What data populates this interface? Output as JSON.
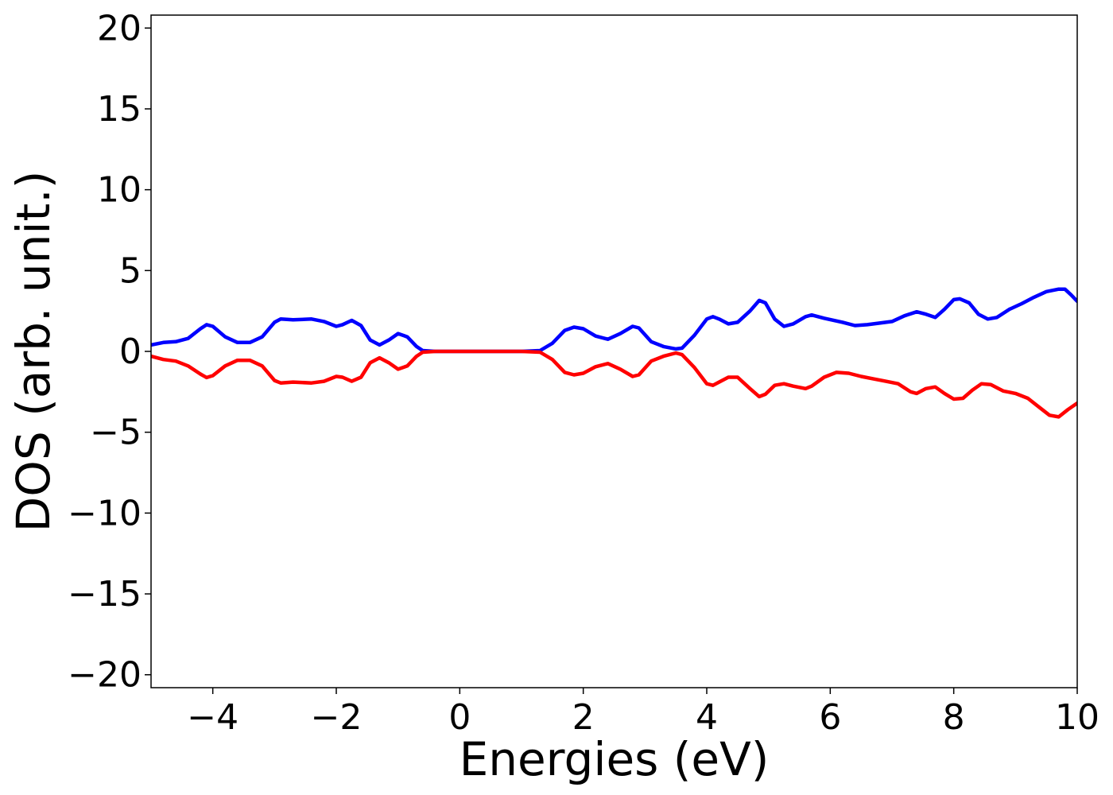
{
  "chart_data": {
    "type": "line",
    "title": "",
    "xlabel": "Energies (eV)",
    "ylabel": "DOS (arb. unit.)",
    "xlim": [
      -5,
      10
    ],
    "ylim": [
      -20.8,
      20.8
    ],
    "x_ticks": [
      -4,
      -2,
      0,
      2,
      4,
      6,
      8,
      10
    ],
    "x_tick_labels": [
      "−4",
      "−2",
      "0",
      "2",
      "4",
      "6",
      "8",
      "10"
    ],
    "y_ticks": [
      20,
      15,
      10,
      5,
      0,
      -5,
      -10,
      -15,
      -20
    ],
    "y_tick_labels": [
      "20",
      "15",
      "10",
      "5",
      "0",
      "−5",
      "−10",
      "−15",
      "−20"
    ],
    "grid": false,
    "legend": "none",
    "series": [
      {
        "color": "#0000ff",
        "points": [
          [
            -5,
            0.4
          ],
          [
            -4.8,
            0.55
          ],
          [
            -4.6,
            0.6
          ],
          [
            -4.4,
            0.8
          ],
          [
            -4.2,
            1.4
          ],
          [
            -4.1,
            1.65
          ],
          [
            -4.0,
            1.55
          ],
          [
            -3.8,
            0.9
          ],
          [
            -3.6,
            0.55
          ],
          [
            -3.4,
            0.55
          ],
          [
            -3.2,
            0.9
          ],
          [
            -3.0,
            1.8
          ],
          [
            -2.9,
            2.0
          ],
          [
            -2.7,
            1.95
          ],
          [
            -2.4,
            2.0
          ],
          [
            -2.2,
            1.85
          ],
          [
            -2.0,
            1.55
          ],
          [
            -1.9,
            1.65
          ],
          [
            -1.75,
            1.92
          ],
          [
            -1.6,
            1.6
          ],
          [
            -1.45,
            0.7
          ],
          [
            -1.3,
            0.4
          ],
          [
            -1.15,
            0.7
          ],
          [
            -1.0,
            1.1
          ],
          [
            -0.85,
            0.9
          ],
          [
            -0.7,
            0.3
          ],
          [
            -0.6,
            0.05
          ],
          [
            -0.4,
            0.0
          ],
          [
            0,
            0.0
          ],
          [
            1.0,
            0.0
          ],
          [
            1.3,
            0.05
          ],
          [
            1.5,
            0.5
          ],
          [
            1.7,
            1.3
          ],
          [
            1.85,
            1.5
          ],
          [
            2.0,
            1.4
          ],
          [
            2.2,
            0.95
          ],
          [
            2.4,
            0.75
          ],
          [
            2.6,
            1.1
          ],
          [
            2.8,
            1.55
          ],
          [
            2.9,
            1.45
          ],
          [
            3.1,
            0.6
          ],
          [
            3.3,
            0.3
          ],
          [
            3.5,
            0.15
          ],
          [
            3.6,
            0.2
          ],
          [
            3.8,
            1.0
          ],
          [
            4.0,
            2.0
          ],
          [
            4.1,
            2.15
          ],
          [
            4.2,
            2.0
          ],
          [
            4.35,
            1.7
          ],
          [
            4.5,
            1.8
          ],
          [
            4.7,
            2.5
          ],
          [
            4.85,
            3.15
          ],
          [
            4.95,
            3.0
          ],
          [
            5.1,
            2.0
          ],
          [
            5.25,
            1.55
          ],
          [
            5.4,
            1.7
          ],
          [
            5.6,
            2.15
          ],
          [
            5.7,
            2.25
          ],
          [
            5.9,
            2.05
          ],
          [
            6.2,
            1.8
          ],
          [
            6.4,
            1.6
          ],
          [
            6.6,
            1.65
          ],
          [
            6.8,
            1.75
          ],
          [
            7.0,
            1.85
          ],
          [
            7.2,
            2.2
          ],
          [
            7.4,
            2.45
          ],
          [
            7.55,
            2.3
          ],
          [
            7.7,
            2.1
          ],
          [
            7.85,
            2.6
          ],
          [
            8.0,
            3.2
          ],
          [
            8.1,
            3.25
          ],
          [
            8.25,
            3.0
          ],
          [
            8.4,
            2.3
          ],
          [
            8.55,
            2.0
          ],
          [
            8.7,
            2.1
          ],
          [
            8.9,
            2.6
          ],
          [
            9.1,
            2.95
          ],
          [
            9.3,
            3.35
          ],
          [
            9.5,
            3.7
          ],
          [
            9.7,
            3.85
          ],
          [
            9.8,
            3.85
          ],
          [
            9.9,
            3.5
          ],
          [
            10.0,
            3.1
          ]
        ]
      },
      {
        "color": "#ff0000",
        "points": [
          [
            -5,
            -0.3
          ],
          [
            -4.8,
            -0.5
          ],
          [
            -4.6,
            -0.6
          ],
          [
            -4.4,
            -0.9
          ],
          [
            -4.2,
            -1.4
          ],
          [
            -4.1,
            -1.62
          ],
          [
            -4.0,
            -1.5
          ],
          [
            -3.8,
            -0.9
          ],
          [
            -3.6,
            -0.55
          ],
          [
            -3.4,
            -0.55
          ],
          [
            -3.2,
            -0.9
          ],
          [
            -3.0,
            -1.8
          ],
          [
            -2.9,
            -1.95
          ],
          [
            -2.7,
            -1.9
          ],
          [
            -2.4,
            -1.95
          ],
          [
            -2.2,
            -1.85
          ],
          [
            -2.0,
            -1.55
          ],
          [
            -1.9,
            -1.6
          ],
          [
            -1.75,
            -1.85
          ],
          [
            -1.6,
            -1.6
          ],
          [
            -1.45,
            -0.7
          ],
          [
            -1.3,
            -0.4
          ],
          [
            -1.15,
            -0.7
          ],
          [
            -1.0,
            -1.1
          ],
          [
            -0.85,
            -0.9
          ],
          [
            -0.7,
            -0.3
          ],
          [
            -0.6,
            -0.05
          ],
          [
            -0.4,
            0.0
          ],
          [
            0,
            0.0
          ],
          [
            1.0,
            0.0
          ],
          [
            1.3,
            -0.05
          ],
          [
            1.5,
            -0.5
          ],
          [
            1.7,
            -1.3
          ],
          [
            1.85,
            -1.45
          ],
          [
            2.0,
            -1.35
          ],
          [
            2.2,
            -0.95
          ],
          [
            2.4,
            -0.75
          ],
          [
            2.6,
            -1.1
          ],
          [
            2.8,
            -1.55
          ],
          [
            2.9,
            -1.45
          ],
          [
            3.1,
            -0.6
          ],
          [
            3.3,
            -0.3
          ],
          [
            3.5,
            -0.1
          ],
          [
            3.6,
            -0.2
          ],
          [
            3.8,
            -1.0
          ],
          [
            4.0,
            -2.0
          ],
          [
            4.1,
            -2.1
          ],
          [
            4.2,
            -1.9
          ],
          [
            4.35,
            -1.6
          ],
          [
            4.5,
            -1.6
          ],
          [
            4.7,
            -2.3
          ],
          [
            4.85,
            -2.8
          ],
          [
            4.95,
            -2.65
          ],
          [
            5.1,
            -2.1
          ],
          [
            5.25,
            -2.0
          ],
          [
            5.4,
            -2.15
          ],
          [
            5.6,
            -2.3
          ],
          [
            5.7,
            -2.15
          ],
          [
            5.9,
            -1.6
          ],
          [
            6.1,
            -1.3
          ],
          [
            6.3,
            -1.35
          ],
          [
            6.5,
            -1.55
          ],
          [
            6.7,
            -1.7
          ],
          [
            6.9,
            -1.85
          ],
          [
            7.1,
            -2.0
          ],
          [
            7.3,
            -2.5
          ],
          [
            7.4,
            -2.6
          ],
          [
            7.55,
            -2.3
          ],
          [
            7.7,
            -2.2
          ],
          [
            7.85,
            -2.6
          ],
          [
            8.0,
            -2.95
          ],
          [
            8.15,
            -2.9
          ],
          [
            8.3,
            -2.4
          ],
          [
            8.45,
            -2.0
          ],
          [
            8.6,
            -2.05
          ],
          [
            8.8,
            -2.45
          ],
          [
            9.0,
            -2.6
          ],
          [
            9.2,
            -2.9
          ],
          [
            9.4,
            -3.5
          ],
          [
            9.55,
            -3.95
          ],
          [
            9.7,
            -4.05
          ],
          [
            9.85,
            -3.6
          ],
          [
            10.0,
            -3.2
          ]
        ]
      }
    ]
  }
}
